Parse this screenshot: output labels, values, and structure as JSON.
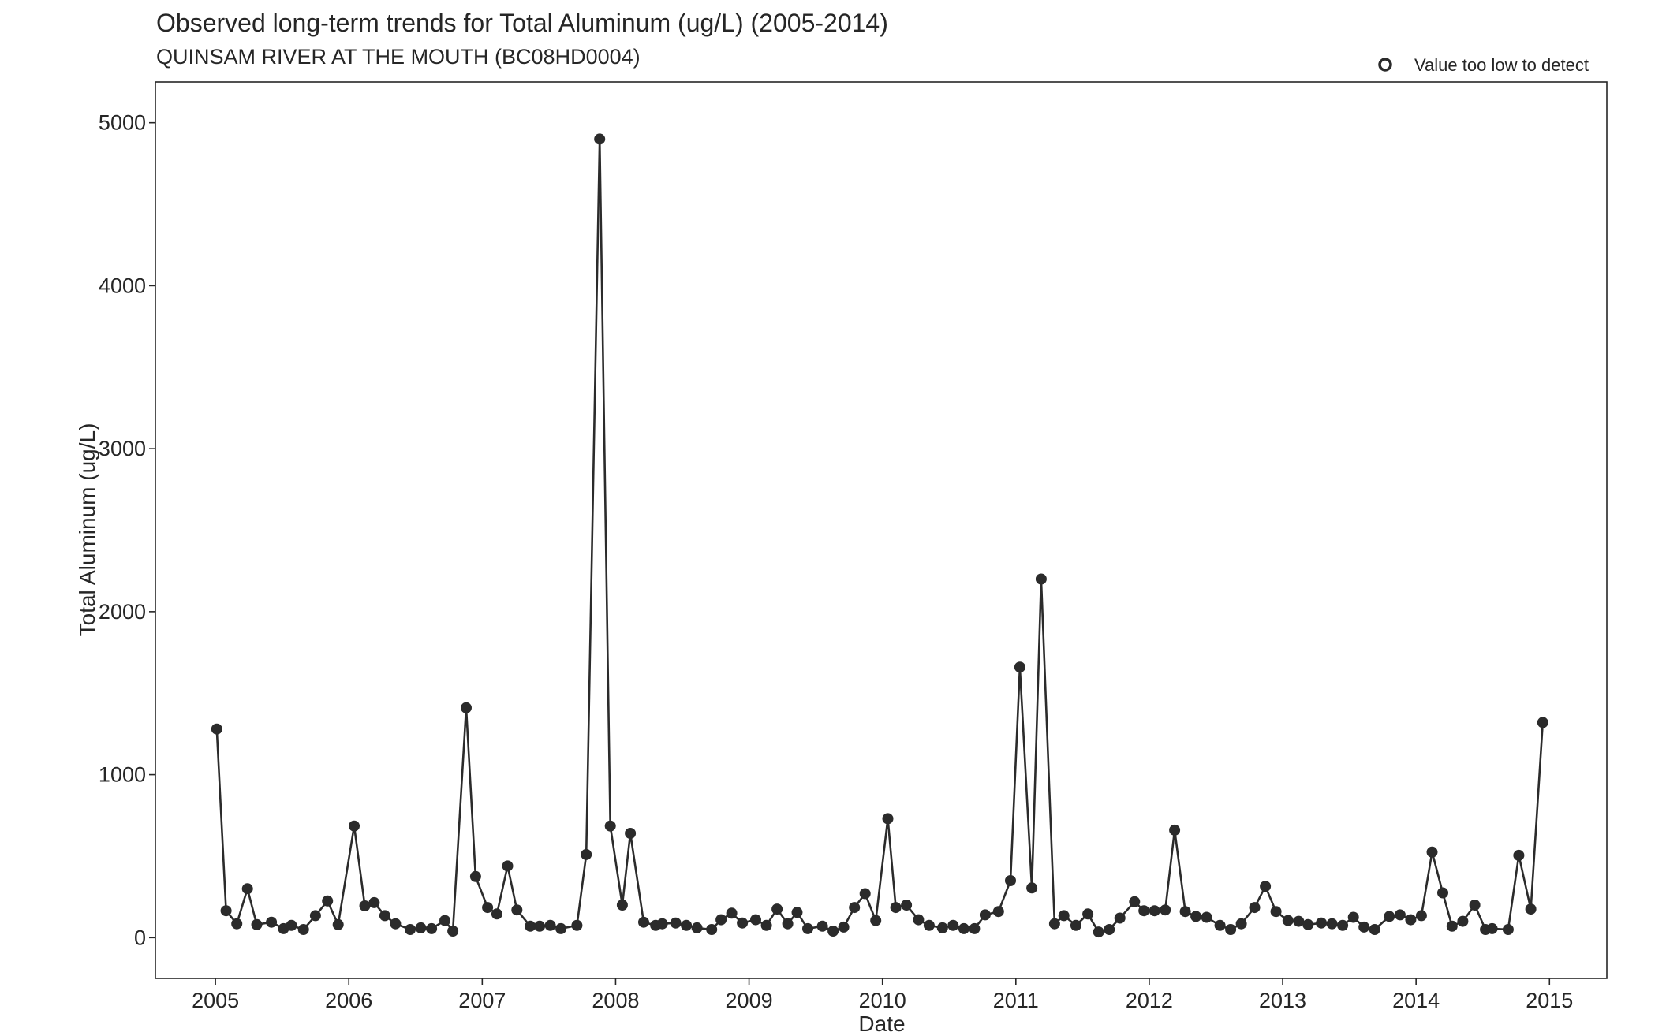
{
  "chart_data": {
    "type": "line",
    "title": "Observed long-term trends for Total Aluminum (ug/L) (2005-2014)",
    "subtitle": "QUINSAM RIVER AT THE MOUTH (BC08HD0004)",
    "xlabel": "Date",
    "ylabel": "Total Aluminum (ug/L)",
    "xlim": [
      2004.55,
      2015.43
    ],
    "ylim": [
      -250,
      5250
    ],
    "x_ticks": [
      2005,
      2006,
      2007,
      2008,
      2009,
      2010,
      2011,
      2012,
      2013,
      2014,
      2015
    ],
    "x_tick_labels": [
      "2005",
      "2006",
      "2007",
      "2008",
      "2009",
      "2010",
      "2011",
      "2012",
      "2013",
      "2014",
      "2015"
    ],
    "y_ticks": [
      0,
      1000,
      2000,
      3000,
      4000,
      5000
    ],
    "y_tick_labels": [
      "0",
      "1000",
      "2000",
      "3000",
      "4000",
      "5000"
    ],
    "grid": false,
    "legend": {
      "position": "top-right",
      "entries": [
        {
          "label": "Value too low to detect",
          "marker": "open-circle"
        }
      ]
    },
    "colors": {
      "line": "#2b2b2b",
      "point": "#2b2b2b",
      "frame": "#262626"
    },
    "series": [
      {
        "x": [
          2005.01,
          2005.08,
          2005.16,
          2005.24,
          2005.31,
          2005.42,
          2005.51,
          2005.57,
          2005.66,
          2005.75,
          2005.84,
          2005.92,
          2006.04,
          2006.12,
          2006.19,
          2006.27,
          2006.35,
          2006.46,
          2006.54,
          2006.62,
          2006.72,
          2006.78,
          2006.88,
          2006.95,
          2007.04,
          2007.11,
          2007.19,
          2007.26,
          2007.36,
          2007.43,
          2007.51,
          2007.59,
          2007.71,
          2007.78,
          2007.88,
          2007.96,
          2008.05,
          2008.11,
          2008.21,
          2008.3,
          2008.35,
          2008.45,
          2008.53,
          2008.61,
          2008.72,
          2008.79,
          2008.87,
          2008.95,
          2009.05,
          2009.13,
          2009.21,
          2009.29,
          2009.36,
          2009.44,
          2009.55,
          2009.63,
          2009.71,
          2009.79,
          2009.87,
          2009.95,
          2010.04,
          2010.1,
          2010.18,
          2010.27,
          2010.35,
          2010.45,
          2010.53,
          2010.61,
          2010.69,
          2010.77,
          2010.87,
          2010.96,
          2011.03,
          2011.12,
          2011.19,
          2011.29,
          2011.36,
          2011.45,
          2011.54,
          2011.62,
          2011.7,
          2011.78,
          2011.89,
          2011.96,
          2012.04,
          2012.12,
          2012.19,
          2012.27,
          2012.35,
          2012.43,
          2012.53,
          2012.61,
          2012.69,
          2012.79,
          2012.87,
          2012.95,
          2013.04,
          2013.12,
          2013.19,
          2013.29,
          2013.37,
          2013.45,
          2013.53,
          2013.61,
          2013.69,
          2013.8,
          2013.88,
          2013.96,
          2014.04,
          2014.12,
          2014.2,
          2014.27,
          2014.35,
          2014.44,
          2014.52,
          2014.57,
          2014.69,
          2014.77,
          2014.86,
          2014.95
        ],
        "values": [
          1280,
          165,
          85,
          300,
          80,
          95,
          55,
          75,
          50,
          135,
          225,
          80,
          685,
          195,
          215,
          135,
          85,
          50,
          60,
          55,
          105,
          40,
          1410,
          375,
          185,
          145,
          440,
          170,
          70,
          70,
          75,
          55,
          75,
          510,
          4900,
          685,
          200,
          640,
          95,
          75,
          85,
          90,
          75,
          60,
          50,
          110,
          150,
          90,
          110,
          75,
          175,
          85,
          155,
          55,
          70,
          40,
          65,
          185,
          270,
          105,
          730,
          185,
          200,
          110,
          75,
          60,
          75,
          55,
          55,
          140,
          160,
          350,
          1660,
          305,
          2200,
          85,
          135,
          75,
          145,
          35,
          50,
          120,
          220,
          165,
          165,
          170,
          660,
          160,
          130,
          125,
          75,
          50,
          85,
          185,
          315,
          160,
          105,
          100,
          80,
          90,
          85,
          75,
          125,
          65,
          50,
          130,
          140,
          110,
          135,
          525,
          275,
          70,
          100,
          200,
          50,
          55,
          50,
          505,
          175,
          1320
        ]
      }
    ]
  }
}
